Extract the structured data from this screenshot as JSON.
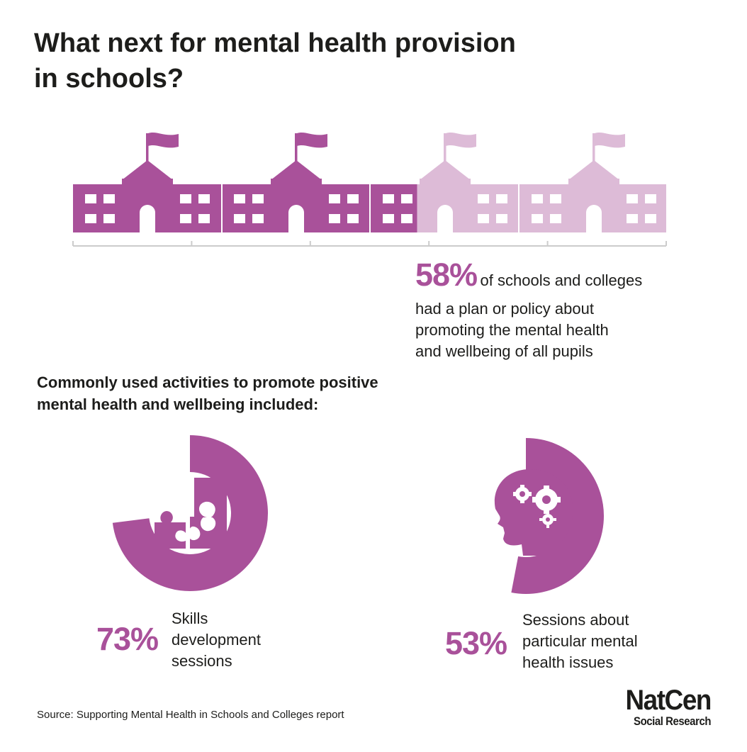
{
  "title": {
    "line1": "What next for mental health provision",
    "line2": "in schools?"
  },
  "colors": {
    "accent": "#a9519a",
    "accent_light": "#ddbbd7",
    "text": "#1d1d1b",
    "axis": "#cccccc"
  },
  "schools_stat": {
    "value": 58,
    "value_text": "58%",
    "line1": "of schools and colleges",
    "line2": "had a plan or policy about",
    "line3": "promoting the mental health",
    "line4": "and wellbeing of all pupils"
  },
  "activities_heading": {
    "line1": "Commonly used activities to promote positive",
    "line2": "mental health and wellbeing included:"
  },
  "activities": [
    {
      "value": 73,
      "value_text": "73%",
      "icon": "puzzle-icon",
      "label_lines": [
        "Skills",
        "development",
        "sessions"
      ]
    },
    {
      "value": 53,
      "value_text": "53%",
      "icon": "head-gears-icon",
      "label_lines": [
        "Sessions about",
        "particular mental",
        "health issues"
      ]
    }
  ],
  "source": "Source: Supporting Mental Health in Schools and Colleges report",
  "logo": {
    "main": "NatCen",
    "sub": "Social Research"
  }
}
